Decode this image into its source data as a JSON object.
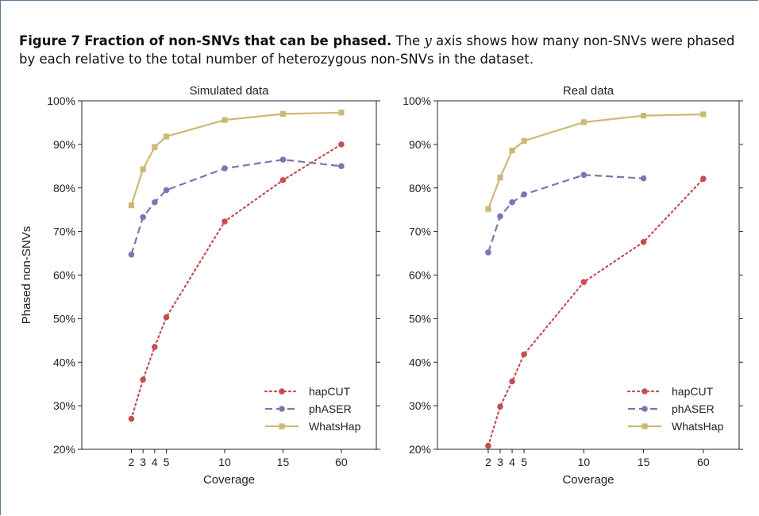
{
  "caption": {
    "label": "Figure 7",
    "heading": "Fraction of non-SNVs that can be phased.",
    "text_before": "The",
    "yvar": "y",
    "text_after": "axis shows how many non-SNVs were phased by each relative to the total number of heterozygous non-SNVs in the dataset."
  },
  "colors": {
    "hapCUT": "#c44e52",
    "phASER": "#8172b2",
    "WhatsHap": "#ccb974"
  },
  "chart_data": [
    {
      "type": "line",
      "title": "Simulated data",
      "xlabel": "Coverage",
      "ylabel": "Phased non-SNVs",
      "x": [
        2,
        3,
        4,
        5,
        10,
        15,
        60
      ],
      "ylim": [
        20,
        100
      ],
      "y_ticks": [
        "20%",
        "30%",
        "40%",
        "50%",
        "60%",
        "70%",
        "80%",
        "90%",
        "100%"
      ],
      "legend_position": "bottom-right",
      "series": [
        {
          "name": "hapCUT",
          "style": "dotted",
          "marker": "circle",
          "values": [
            27,
            36,
            43.5,
            50.3,
            72.3,
            81.8,
            90
          ]
        },
        {
          "name": "phASER",
          "style": "dashed",
          "marker": "circle",
          "values": [
            64.7,
            73.3,
            76.7,
            79.5,
            84.5,
            86.5,
            85
          ]
        },
        {
          "name": "WhatsHap",
          "style": "solid",
          "marker": "square",
          "values": [
            76,
            84.3,
            89.4,
            91.8,
            95.6,
            97,
            97.3
          ]
        }
      ]
    },
    {
      "type": "line",
      "title": "Real data",
      "xlabel": "Coverage",
      "ylabel": "",
      "x": [
        2,
        3,
        4,
        5,
        10,
        15,
        60
      ],
      "ylim": [
        20,
        100
      ],
      "y_ticks": [
        "20%",
        "30%",
        "40%",
        "50%",
        "60%",
        "70%",
        "80%",
        "90%",
        "100%"
      ],
      "legend_position": "bottom-right",
      "series": [
        {
          "name": "hapCUT",
          "style": "dotted",
          "marker": "circle",
          "values": [
            20.8,
            29.8,
            35.6,
            41.8,
            58.4,
            67.6,
            82.1
          ]
        },
        {
          "name": "phASER",
          "style": "dashed",
          "marker": "circle",
          "values": [
            65.2,
            73.5,
            76.7,
            78.5,
            83,
            82.2,
            null
          ]
        },
        {
          "name": "WhatsHap",
          "style": "solid",
          "marker": "square",
          "values": [
            75.2,
            82.4,
            88.6,
            90.8,
            95.1,
            96.6,
            96.9
          ]
        }
      ]
    }
  ]
}
